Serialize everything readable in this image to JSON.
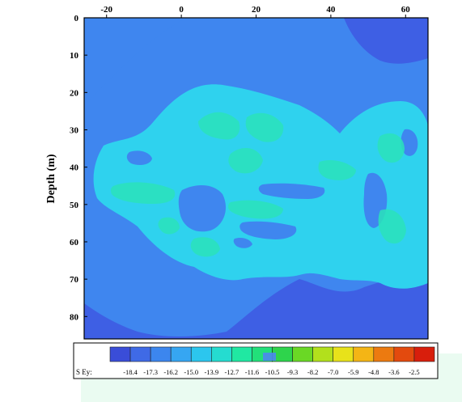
{
  "chart_data": {
    "type": "heatmap",
    "title": "",
    "xlabel": "",
    "ylabel": "Depth (m)",
    "xlim": [
      -26,
      66
    ],
    "ylim": [
      0,
      86
    ],
    "y_inverted": true,
    "x_ticks": [
      "-20",
      "0",
      "20",
      "40",
      "60"
    ],
    "x_tick_values": [
      -20,
      0,
      20,
      40,
      60
    ],
    "y_ticks": [
      "0",
      "10",
      "20",
      "30",
      "40",
      "50",
      "60",
      "70",
      "80"
    ],
    "y_tick_values": [
      0,
      10,
      20,
      30,
      40,
      50,
      60,
      70,
      80
    ],
    "x_axis_position": "top",
    "colorbar": {
      "label": "S Ey:",
      "tick_labels": [
        "-18.4",
        "-17.3",
        "-16.2",
        "-15.0",
        "-13.9",
        "-12.7",
        "-11.6",
        "-10.5",
        "-9.3",
        "-8.2",
        "-7.0",
        "-5.9",
        "-4.8",
        "-3.6",
        "-2.5"
      ],
      "colors": [
        "#3a4dd8",
        "#3f6ae6",
        "#3c86ee",
        "#36a6f2",
        "#2cc6ee",
        "#25dcd0",
        "#20e8a2",
        "#22e07a",
        "#2ed44c",
        "#6ad825",
        "#b2e01c",
        "#e8e21a",
        "#f4b515",
        "#ec7a10",
        "#e34a0e",
        "#d81e0c"
      ]
    },
    "regions": [
      {
        "label": "-18.4 to -17.3",
        "color": "#3e5fe4",
        "extent": "outer background, upper right and lower corners"
      },
      {
        "label": "-17.3 to -16.2",
        "color": "#3f86ef",
        "extent": "bulb from x ≈ -26 to 42, depth ≈ 0 to 82"
      },
      {
        "label": "-15.0 to -13.9",
        "color": "#2fd2ee",
        "extent": "irregular band x ≈ -24 to 66, depth ≈ 22 to 69"
      },
      {
        "label": "-12.7 to -11.6",
        "color": "#2ae3ba",
        "extent": "inner zones near depth 30 and 45-55"
      }
    ],
    "grid": false
  }
}
